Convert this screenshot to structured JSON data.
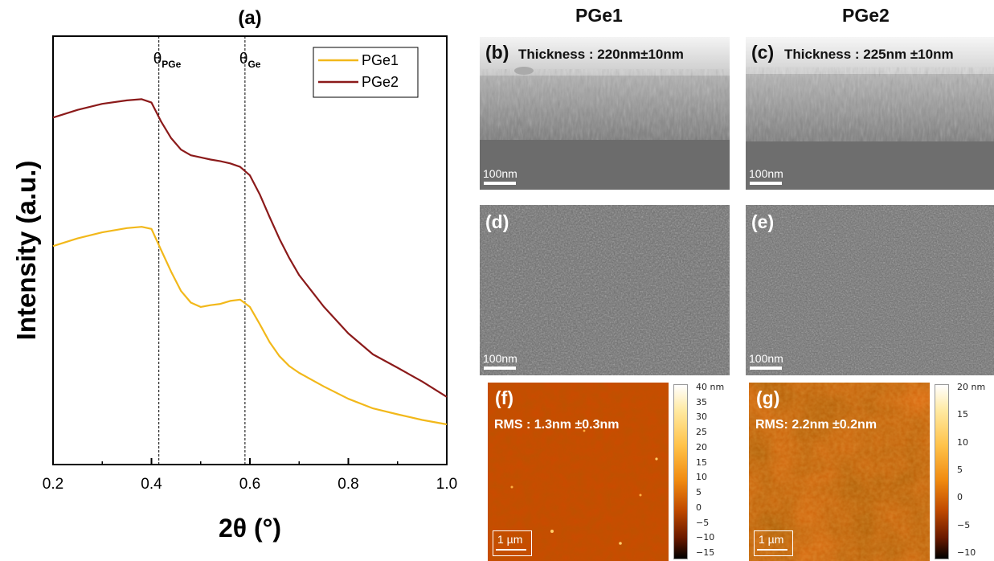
{
  "chart_data": {
    "type": "line",
    "panel_label": "(a)",
    "xlabel": "2θ (°)",
    "ylabel": "Intensity (a.u.)",
    "xlim": [
      0.2,
      1.0
    ],
    "xticks": [
      "0.2",
      "0.4",
      "0.6",
      "0.8",
      "1.0"
    ],
    "legend_placement": "top-right",
    "grid": false,
    "annotations": [
      {
        "x": 0.415,
        "main": "θ",
        "sub": "PGe"
      },
      {
        "x": 0.59,
        "main": "θ",
        "sub": "Ge"
      }
    ],
    "series": [
      {
        "name": "PGe1",
        "color": "#f2b81a",
        "x": [
          0.2,
          0.25,
          0.3,
          0.35,
          0.38,
          0.4,
          0.42,
          0.44,
          0.46,
          0.48,
          0.5,
          0.52,
          0.54,
          0.56,
          0.58,
          0.6,
          0.62,
          0.64,
          0.66,
          0.68,
          0.7,
          0.75,
          0.8,
          0.85,
          0.9,
          0.95,
          1.0
        ],
        "y": [
          0.51,
          0.528,
          0.542,
          0.552,
          0.555,
          0.55,
          0.5,
          0.45,
          0.405,
          0.378,
          0.368,
          0.372,
          0.375,
          0.382,
          0.385,
          0.368,
          0.33,
          0.29,
          0.255,
          0.228,
          0.21,
          0.18,
          0.155,
          0.135,
          0.12,
          0.103,
          0.09
        ]
      },
      {
        "name": "PGe2",
        "color": "#8b1a1a",
        "x": [
          0.2,
          0.25,
          0.3,
          0.35,
          0.38,
          0.4,
          0.42,
          0.44,
          0.46,
          0.48,
          0.5,
          0.52,
          0.54,
          0.56,
          0.58,
          0.6,
          0.62,
          0.64,
          0.66,
          0.68,
          0.7,
          0.75,
          0.8,
          0.85,
          0.9,
          0.95,
          1.0
        ],
        "y": [
          0.81,
          0.828,
          0.842,
          0.85,
          0.853,
          0.845,
          0.8,
          0.762,
          0.735,
          0.722,
          0.717,
          0.712,
          0.708,
          0.703,
          0.695,
          0.675,
          0.635,
          0.58,
          0.525,
          0.478,
          0.44,
          0.37,
          0.31,
          0.26,
          0.225,
          0.19,
          0.155
        ]
      }
    ]
  },
  "columns": {
    "left": "PGe1",
    "right": "PGe2"
  },
  "panels": {
    "b": {
      "label": "(b)",
      "thickness": "Thickness : 220nm±10nm",
      "scale": "100nm"
    },
    "c": {
      "label": "(c)",
      "thickness": "Thickness : 225nm ±10nm",
      "scale": "100nm"
    },
    "d": {
      "label": "(d)",
      "scale": "100nm"
    },
    "e": {
      "label": "(e)",
      "scale": "100nm"
    },
    "f": {
      "label": "(f)",
      "rms": "RMS : 1.3nm ±0.3nm",
      "scale": "1 µm",
      "colorbar": [
        "40 nm",
        "35",
        "30",
        "25",
        "20",
        "15",
        "10",
        "5",
        "0",
        "−5",
        "−10",
        "−15"
      ]
    },
    "g": {
      "label": "(g)",
      "rms": "RMS: 2.2nm ±0.2nm",
      "scale": "1 µm",
      "colorbar": [
        "20 nm",
        "15",
        "10",
        "5",
        "0",
        "−5",
        "−10"
      ]
    }
  }
}
